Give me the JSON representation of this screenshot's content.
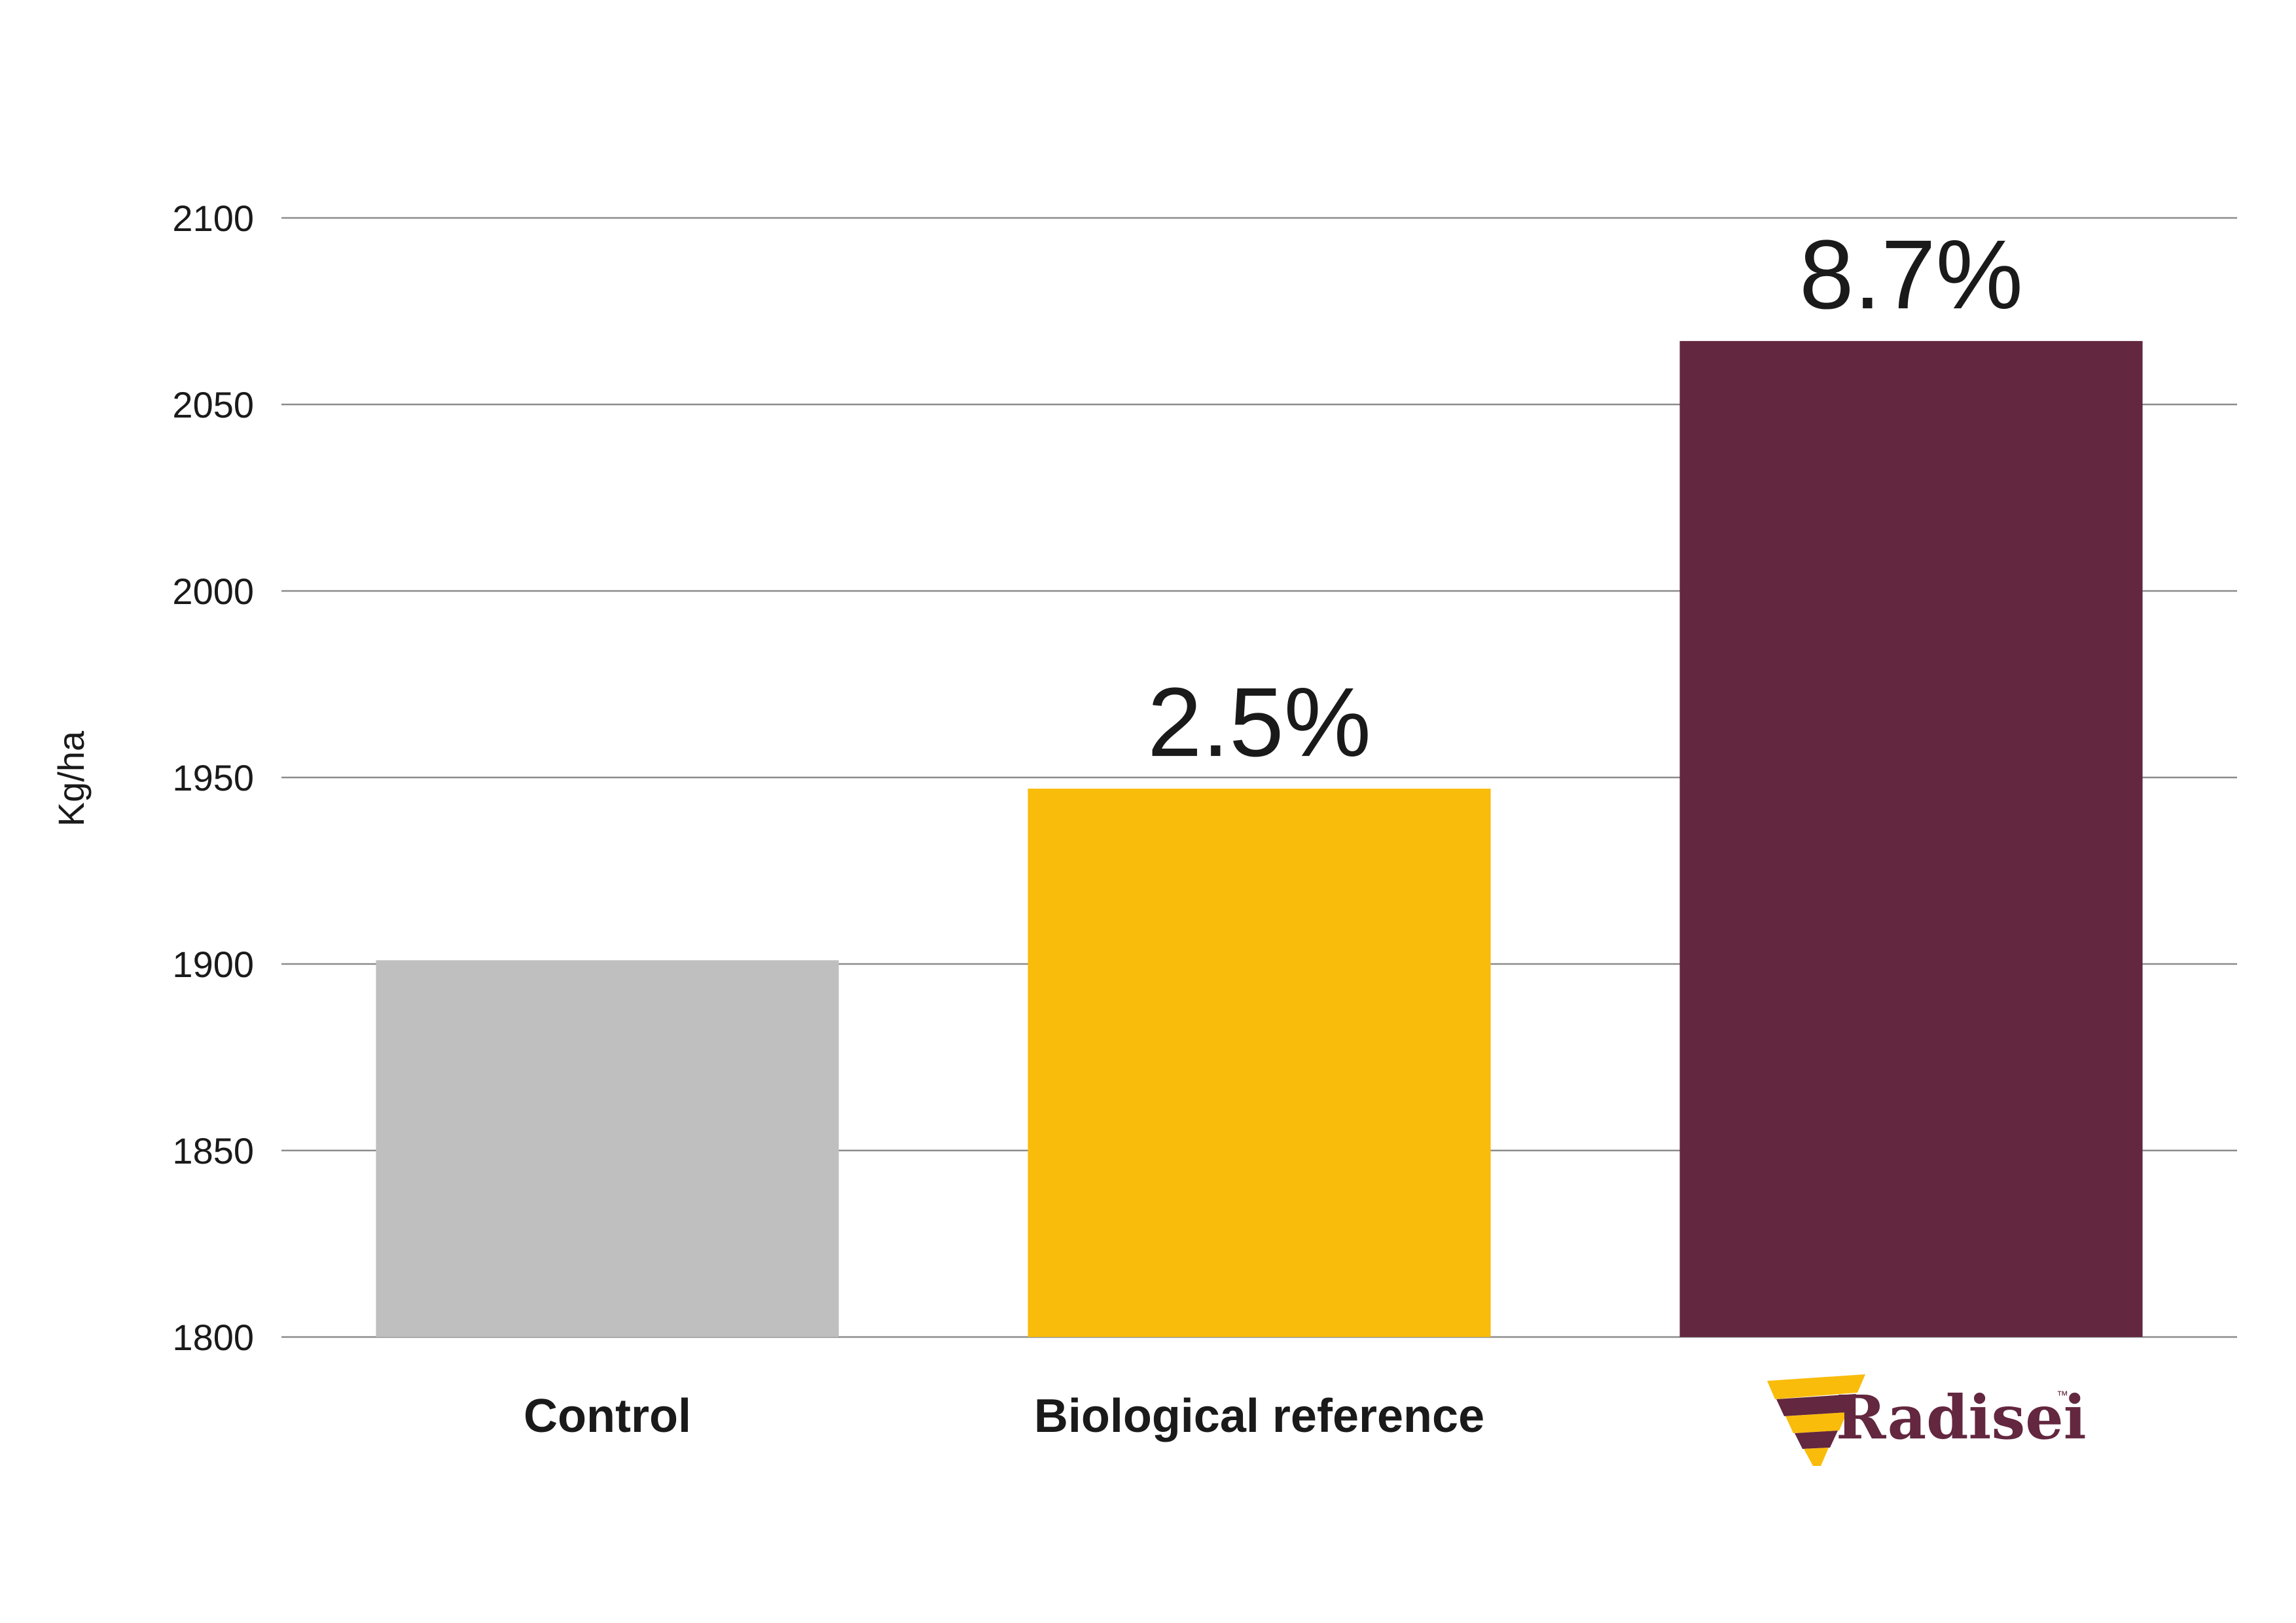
{
  "chart_data": {
    "type": "bar",
    "categories": [
      "Control",
      "Biological reference",
      "Radisei"
    ],
    "values": [
      1901,
      1947,
      2067
    ],
    "data_labels": [
      "",
      "2.5%",
      "8.7%"
    ],
    "bar_colors": [
      "#BFBFBF",
      "#F9BC0B",
      "#63273F"
    ],
    "title": "",
    "xlabel": "",
    "ylabel": "Kg/ha",
    "ylim": [
      1800,
      2100
    ],
    "yticks": [
      1800,
      1850,
      1900,
      1950,
      2000,
      2050,
      2100
    ],
    "grid": true,
    "legend": "none"
  },
  "brand": {
    "name": "Radisei",
    "trademark": "™",
    "logo_icon": "radisei-root-icon",
    "primary_color": "#63273F",
    "accent_color": "#F9BC0B"
  }
}
